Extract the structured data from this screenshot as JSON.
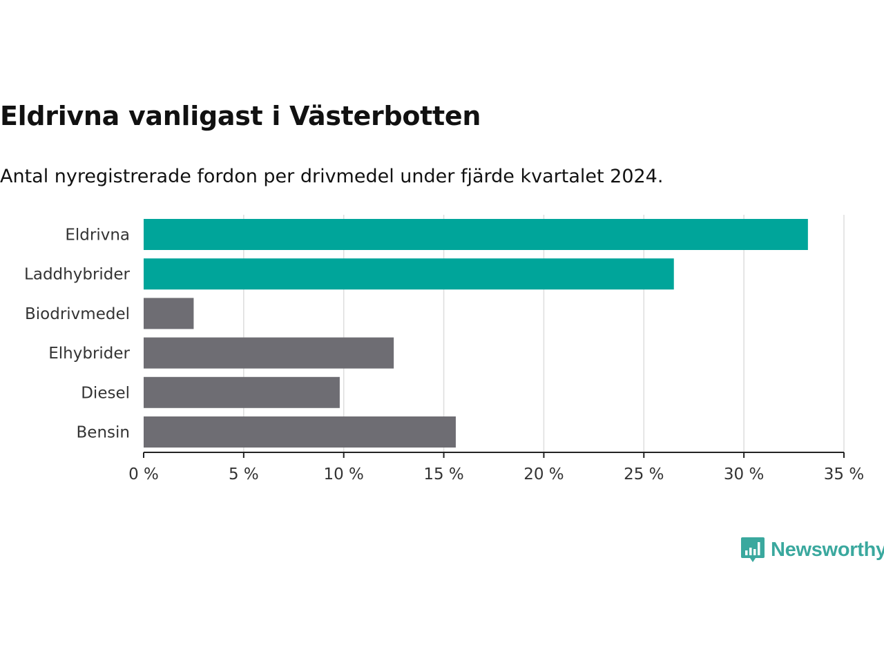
{
  "chart_data": {
    "type": "bar",
    "orientation": "horizontal",
    "title": "Eldrivna vanligast i Västerbotten",
    "subtitle": "Antal nyregistrerade fordon per drivmedel under fjärde kvartalet 2024.",
    "categories": [
      "Eldrivna",
      "Laddhybrider",
      "Biodrivmedel",
      "Elhybrider",
      "Diesel",
      "Bensin"
    ],
    "values": [
      33.2,
      26.5,
      2.5,
      12.5,
      9.8,
      15.6
    ],
    "unit": "%",
    "xlim": [
      0,
      35
    ],
    "xticks": [
      0,
      5,
      10,
      15,
      20,
      25,
      30,
      35
    ],
    "xtick_labels": [
      "0 %",
      "5 %",
      "10 %",
      "15 %",
      "20 %",
      "25 %",
      "30 %",
      "35 %"
    ],
    "grid": "vertical",
    "legend": "none",
    "colors": {
      "highlight": "#00a59a",
      "default": "#6e6d73",
      "grid": "#dddddd",
      "axis": "#222222"
    },
    "bar_colors": [
      "highlight",
      "highlight",
      "default",
      "default",
      "default",
      "default"
    ]
  },
  "brand": {
    "name": "Newsworthy",
    "icon": "newsworthy-logo-icon",
    "color": "#3aa89e"
  }
}
